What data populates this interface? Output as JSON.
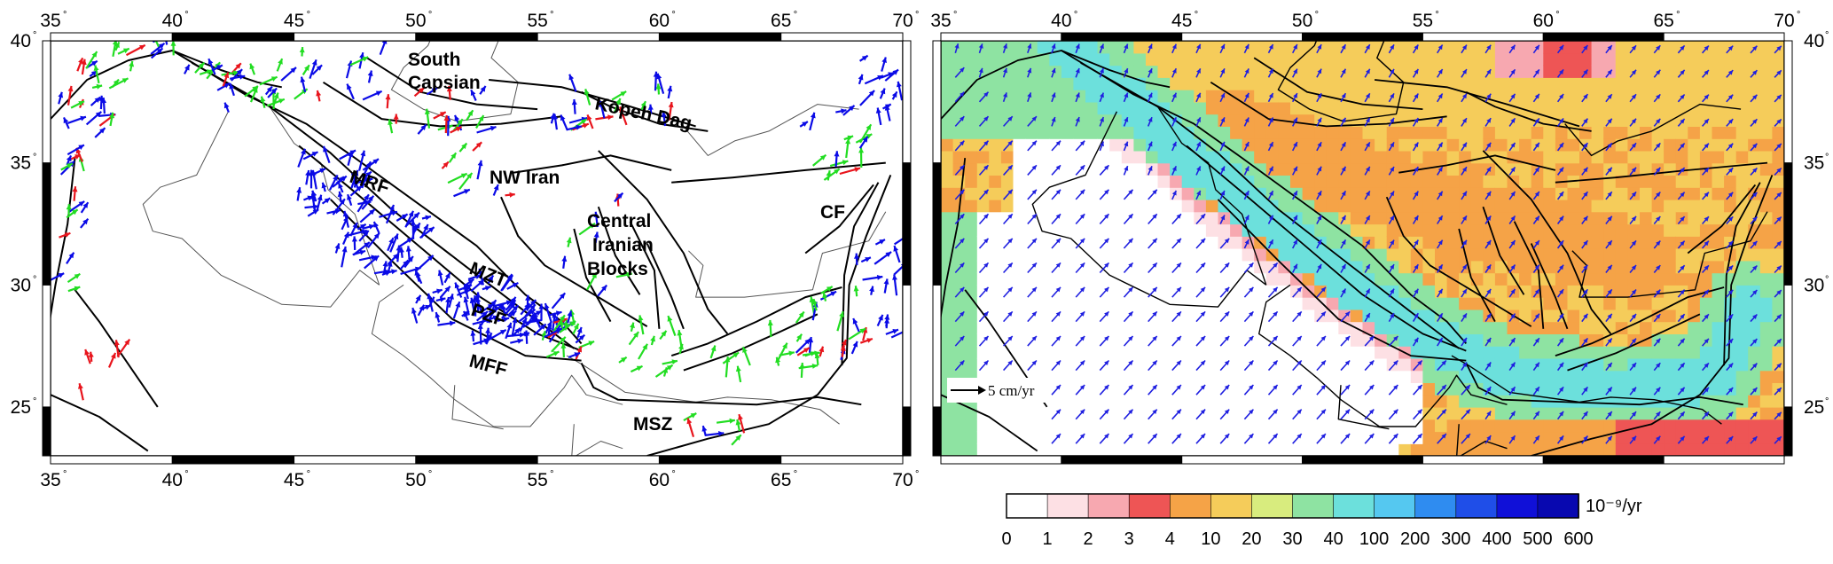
{
  "colors": {
    "gps_red": "#e8141c",
    "gps_green": "#22dd22",
    "gps_blue": "#0a0ae6",
    "velocity_arrow": "#1f1fe0",
    "fault_line": "#000000",
    "border_line": "#555555"
  },
  "left_map": {
    "lon_ticks": [
      "35",
      "40",
      "45",
      "50",
      "55",
      "60",
      "65",
      "70"
    ],
    "lat_ticks": [
      "25",
      "30",
      "35",
      "40"
    ],
    "lon_range": [
      35,
      70
    ],
    "lat_range": [
      23,
      40
    ],
    "labels": {
      "south_caspian": [
        "South",
        "Capsian"
      ],
      "kopeh_dag": "Kopeh Dag",
      "nw_iran": "NW Iran",
      "central_iranian_blocks": [
        "Central",
        "Iranian",
        "Blocks"
      ],
      "cf": "CF",
      "mrf": "MRF",
      "mzt": "MZT",
      "pzf": "PZF",
      "mff": "MFF",
      "msz": "MSZ"
    }
  },
  "right_map": {
    "lon_ticks": [
      "35",
      "40",
      "45",
      "50",
      "55",
      "60",
      "65",
      "70"
    ],
    "lat_ticks": [
      "25",
      "30",
      "35",
      "40"
    ],
    "lon_range": [
      35,
      70
    ],
    "lat_range": [
      23,
      40
    ],
    "scale_arrow_label": "5 cm/yr"
  },
  "colorbar": {
    "unit_label": "10⁻⁹/yr",
    "tick_labels": [
      "0",
      "1",
      "2",
      "3",
      "4",
      "10",
      "20",
      "30",
      "40",
      "100",
      "200",
      "300",
      "400",
      "500",
      "600"
    ],
    "colors": [
      "#ffffff",
      "#fde0e4",
      "#f7a8b0",
      "#ee5555",
      "#f5a347",
      "#f5cc5a",
      "#d8ec7e",
      "#8ee3a2",
      "#6ce0dc",
      "#55c8f0",
      "#2f8cf0",
      "#1f4ee8",
      "#1010d8",
      "#0808b0",
      "#1a1a70"
    ]
  }
}
